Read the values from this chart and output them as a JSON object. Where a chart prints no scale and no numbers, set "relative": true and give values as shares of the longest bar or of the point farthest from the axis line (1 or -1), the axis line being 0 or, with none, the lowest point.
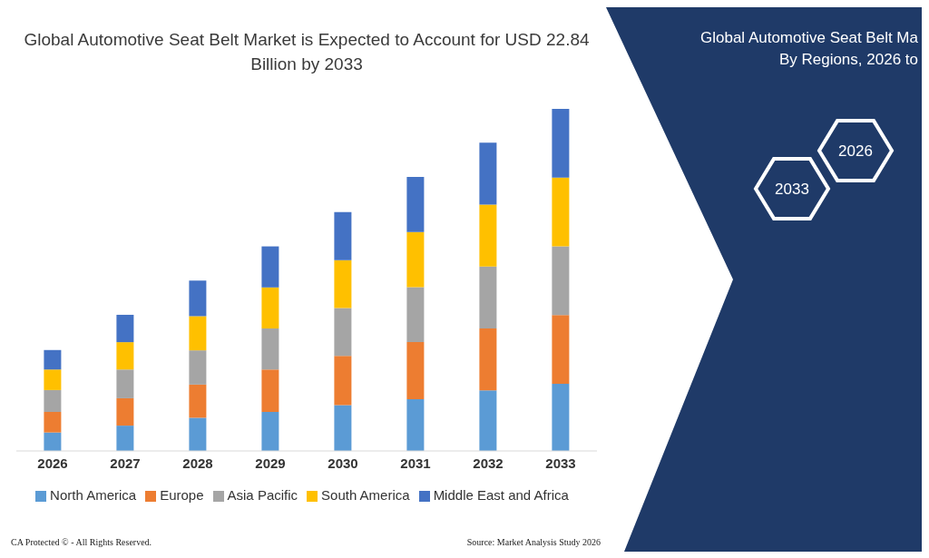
{
  "chart_data": [
    {
      "type": "bar",
      "title": "Global Automotive Seat Belt Market is Expected to Account for USD 22.84 Billion by 2033",
      "categories": [
        "2026",
        "2027",
        "2028",
        "2029",
        "2030",
        "2031",
        "2032",
        "2033"
      ],
      "stacked": true,
      "relative": true,
      "legend": "bottom",
      "series": [
        {
          "name": "North America",
          "color": "#5b9bd5",
          "values": [
            0.054,
            0.074,
            0.097,
            0.114,
            0.134,
            0.151,
            0.177,
            0.196
          ]
        },
        {
          "name": "Europe",
          "color": "#ed7d31",
          "values": [
            0.06,
            0.08,
            0.097,
            0.124,
            0.144,
            0.167,
            0.181,
            0.201
          ]
        },
        {
          "name": "Asia Pacific",
          "color": "#a5a5a5",
          "values": [
            0.064,
            0.084,
            0.1,
            0.12,
            0.14,
            0.161,
            0.181,
            0.201
          ]
        },
        {
          "name": "South America",
          "color": "#ffc000",
          "values": [
            0.06,
            0.08,
            0.1,
            0.12,
            0.14,
            0.161,
            0.181,
            0.201
          ]
        },
        {
          "name": "Middle East and Africa",
          "color": "#4472c4",
          "values": [
            0.057,
            0.08,
            0.104,
            0.12,
            0.14,
            0.161,
            0.181,
            0.201
          ]
        }
      ],
      "annotations": [
        "CA Protected © - All Rights Reserved.",
        "Source: Market Analysis Study 2026"
      ]
    },
    {
      "type": "other",
      "title": "Global Automotive Seat Belt Ma",
      "subtitle": "By Regions, 2026 to",
      "annotations": [
        "2026",
        "2033"
      ]
    }
  ]
}
